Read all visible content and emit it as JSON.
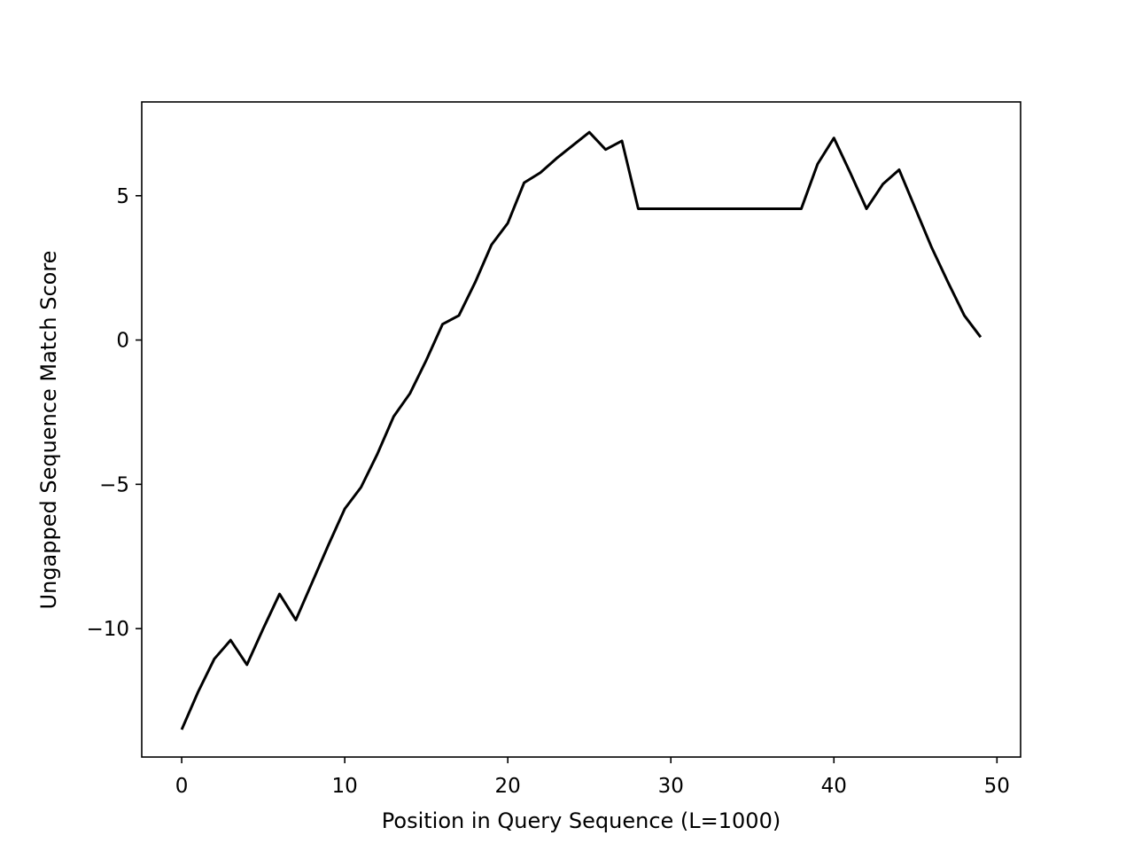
{
  "chart_data": {
    "type": "line",
    "title": "",
    "xlabel": "Position in Query Sequence (L=1000)",
    "ylabel": "Ungapped Sequence Match Score",
    "xlim": [
      -2.45,
      51.45
    ],
    "ylim": [
      -14.45,
      8.25
    ],
    "xticks": [
      0,
      10,
      20,
      30,
      40,
      50
    ],
    "yticks": [
      -10,
      -5,
      0,
      5
    ],
    "xtick_labels": [
      "0",
      "10",
      "20",
      "30",
      "40",
      "50"
    ],
    "ytick_labels": [
      "−10",
      "−5",
      "0",
      "5"
    ],
    "grid": false,
    "legend": "none",
    "series": [
      {
        "color": "#000000",
        "x": [
          0,
          1,
          2,
          3,
          4,
          5,
          6,
          7,
          8,
          9,
          10,
          11,
          12,
          13,
          14,
          15,
          16,
          17,
          18,
          19,
          20,
          21,
          22,
          23,
          24,
          25,
          26,
          27,
          28,
          29,
          30,
          31,
          32,
          33,
          34,
          35,
          36,
          37,
          38,
          39,
          40,
          41,
          42,
          43,
          44,
          45,
          46,
          47,
          48,
          49
        ],
        "y": [
          -13.5,
          -12.2,
          -11.05,
          -10.4,
          -11.25,
          -10.0,
          -8.8,
          -9.7,
          -8.4,
          -7.1,
          -5.85,
          -5.1,
          -3.95,
          -2.65,
          -1.85,
          -0.7,
          0.55,
          0.85,
          2.0,
          3.3,
          4.05,
          5.45,
          5.8,
          6.3,
          6.75,
          7.2,
          6.6,
          6.9,
          4.55,
          4.55,
          4.55,
          4.55,
          4.55,
          4.55,
          4.55,
          4.55,
          4.55,
          4.55,
          4.55,
          6.1,
          7.0,
          5.8,
          4.55,
          5.4,
          5.9,
          4.55,
          3.2,
          2.0,
          0.85,
          0.1
        ]
      }
    ]
  }
}
